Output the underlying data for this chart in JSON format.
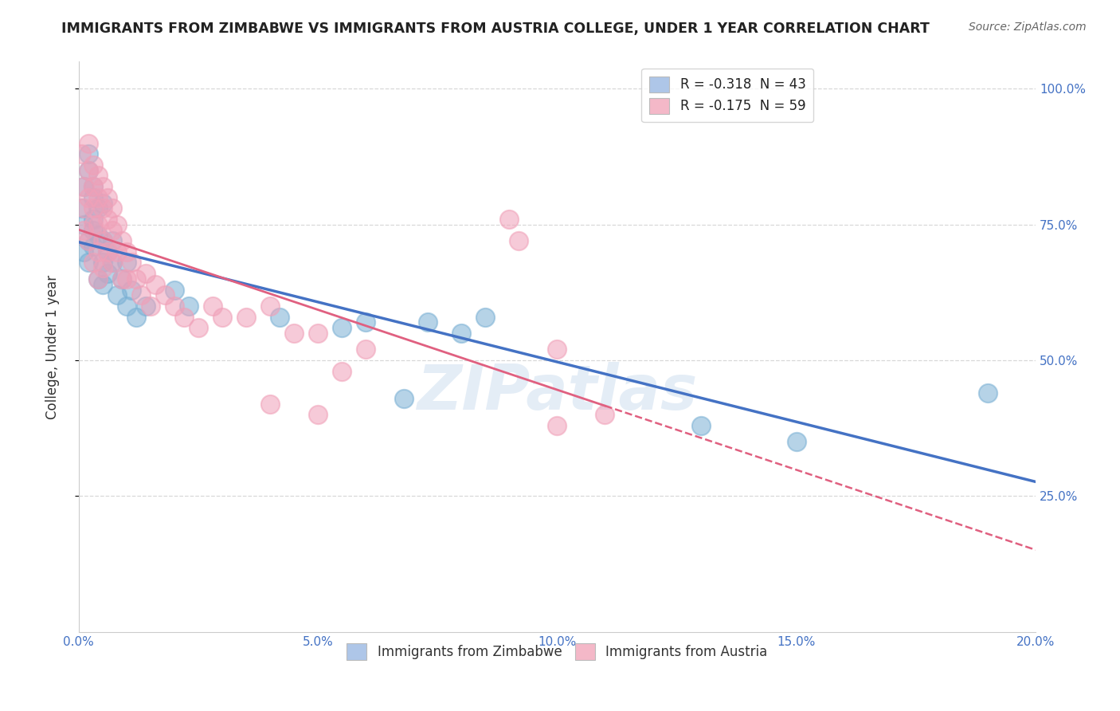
{
  "title": "IMMIGRANTS FROM ZIMBABWE VS IMMIGRANTS FROM AUSTRIA COLLEGE, UNDER 1 YEAR CORRELATION CHART",
  "source": "Source: ZipAtlas.com",
  "ylabel": "College, Under 1 year",
  "xlim": [
    0.0,
    0.2
  ],
  "ylim": [
    0.0,
    1.05
  ],
  "xtick_labels": [
    "0.0%",
    "5.0%",
    "10.0%",
    "15.0%",
    "20.0%"
  ],
  "xtick_vals": [
    0.0,
    0.05,
    0.1,
    0.15,
    0.2
  ],
  "ytick_labels": [
    "25.0%",
    "50.0%",
    "75.0%",
    "100.0%"
  ],
  "ytick_vals": [
    0.25,
    0.5,
    0.75,
    1.0
  ],
  "legend_entries": [
    {
      "label": "R = -0.318  N = 43",
      "color": "#aec6e8"
    },
    {
      "label": "R = -0.175  N = 59",
      "color": "#f4b8c8"
    }
  ],
  "watermark": "ZIPatlas",
  "series": [
    {
      "name": "Immigrants from Zimbabwe",
      "color": "#7ab0d4",
      "trend_color": "#4472c4",
      "x": [
        0.0005,
        0.001,
        0.001,
        0.001,
        0.002,
        0.002,
        0.002,
        0.002,
        0.003,
        0.003,
        0.003,
        0.003,
        0.003,
        0.004,
        0.004,
        0.004,
        0.005,
        0.005,
        0.005,
        0.005,
        0.006,
        0.006,
        0.007,
        0.007,
        0.008,
        0.009,
        0.01,
        0.01,
        0.011,
        0.012,
        0.014,
        0.02,
        0.023,
        0.042,
        0.055,
        0.06,
        0.068,
        0.073,
        0.08,
        0.085,
        0.13,
        0.15,
        0.19
      ],
      "y": [
        0.78,
        0.82,
        0.75,
        0.7,
        0.85,
        0.88,
        0.72,
        0.68,
        0.8,
        0.76,
        0.82,
        0.74,
        0.71,
        0.78,
        0.65,
        0.73,
        0.79,
        0.68,
        0.64,
        0.72,
        0.7,
        0.66,
        0.72,
        0.68,
        0.62,
        0.65,
        0.6,
        0.68,
        0.63,
        0.58,
        0.6,
        0.63,
        0.6,
        0.58,
        0.56,
        0.57,
        0.43,
        0.57,
        0.55,
        0.58,
        0.38,
        0.35,
        0.44
      ]
    },
    {
      "name": "Immigrants from Austria",
      "color": "#f0a0b8",
      "trend_color": "#e06080",
      "x": [
        0.0005,
        0.001,
        0.001,
        0.001,
        0.002,
        0.002,
        0.002,
        0.002,
        0.003,
        0.003,
        0.003,
        0.003,
        0.003,
        0.004,
        0.004,
        0.004,
        0.004,
        0.004,
        0.005,
        0.005,
        0.005,
        0.005,
        0.006,
        0.006,
        0.006,
        0.007,
        0.007,
        0.007,
        0.008,
        0.008,
        0.009,
        0.009,
        0.01,
        0.01,
        0.011,
        0.012,
        0.013,
        0.014,
        0.015,
        0.016,
        0.018,
        0.02,
        0.022,
        0.025,
        0.028,
        0.03,
        0.035,
        0.04,
        0.045,
        0.05,
        0.055,
        0.06,
        0.09,
        0.092,
        0.1,
        0.04,
        0.05,
        0.1,
        0.11
      ],
      "y": [
        0.88,
        0.82,
        0.78,
        0.74,
        0.9,
        0.85,
        0.8,
        0.72,
        0.86,
        0.82,
        0.78,
        0.75,
        0.68,
        0.84,
        0.8,
        0.75,
        0.7,
        0.65,
        0.82,
        0.78,
        0.72,
        0.67,
        0.8,
        0.76,
        0.7,
        0.78,
        0.74,
        0.68,
        0.75,
        0.7,
        0.72,
        0.65,
        0.7,
        0.65,
        0.68,
        0.65,
        0.62,
        0.66,
        0.6,
        0.64,
        0.62,
        0.6,
        0.58,
        0.56,
        0.6,
        0.58,
        0.58,
        0.6,
        0.55,
        0.55,
        0.48,
        0.52,
        0.76,
        0.72,
        0.52,
        0.42,
        0.4,
        0.38,
        0.4
      ]
    }
  ],
  "background_color": "#ffffff",
  "grid_color": "#d8d8d8",
  "title_color": "#222222",
  "axis_color": "#4472c4",
  "watermark_color": "#c5d8ec",
  "watermark_alpha": 0.45
}
